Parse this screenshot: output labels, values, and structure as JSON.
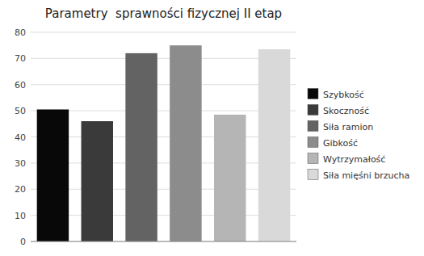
{
  "chart_data": {
    "type": "bar",
    "title": "Parametry  sprawności fizycznej II etap",
    "categories": [
      "Szybkość",
      "Skoczność",
      "Siła ramion",
      "Gibkość",
      "Wytrzymałość",
      "Siła mięśni brzucha"
    ],
    "values": [
      50.5,
      46.0,
      72.0,
      75.0,
      48.5,
      73.5
    ],
    "colors": [
      "#080808",
      "#3a3a3a",
      "#636363",
      "#8c8c8c",
      "#b5b5b5",
      "#d9d9d9"
    ],
    "ylim": [
      0,
      80
    ],
    "yticks": [
      0,
      10,
      20,
      30,
      40,
      50,
      60,
      70,
      80
    ],
    "grid": true,
    "legend": "right",
    "tick_labels": "y"
  }
}
